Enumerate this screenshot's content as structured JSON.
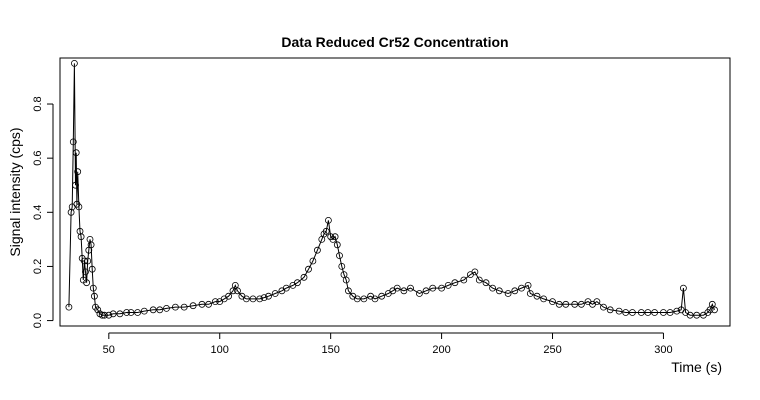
{
  "chart_data": {
    "type": "line",
    "title": "Data Reduced Cr52 Concentration",
    "xlabel": "Time (s)",
    "ylabel": "Signal intensity (cps)",
    "xlim": [
      28,
      330
    ],
    "ylim": [
      -0.02,
      0.97
    ],
    "x_ticks": [
      50,
      100,
      150,
      200,
      250,
      300
    ],
    "y_ticks": [
      0.0,
      0.2,
      0.4,
      0.6,
      0.8
    ],
    "x_tick_labels": [
      "50",
      "100",
      "150",
      "200",
      "250",
      "300"
    ],
    "y_tick_labels": [
      "0.0",
      "0.2",
      "0.4",
      "0.6",
      "0.8"
    ],
    "grid": false,
    "legend": "none",
    "markers": "open-circles-with-lines",
    "series": [
      {
        "x": [
          32,
          33,
          33.5,
          34,
          34.5,
          35,
          35.3,
          35.6,
          36,
          36.5,
          37,
          37.5,
          38,
          38.5,
          39,
          39.5,
          40,
          40.5,
          41,
          41.5,
          42,
          42.5,
          43,
          43.5,
          44,
          45,
          46,
          47,
          48,
          50,
          52,
          55,
          58,
          60,
          63,
          66,
          70,
          73,
          76,
          80,
          84,
          88,
          92,
          95,
          98,
          100,
          102,
          104,
          106,
          107,
          108,
          110,
          112,
          115,
          118,
          120,
          122,
          125,
          128,
          130,
          133,
          135,
          138,
          140,
          142,
          144,
          146,
          147,
          148,
          149,
          150,
          151,
          152,
          153,
          154,
          155,
          156,
          157,
          158,
          160,
          162,
          165,
          168,
          170,
          173,
          176,
          178,
          180,
          183,
          186,
          190,
          193,
          196,
          200,
          203,
          206,
          210,
          213,
          215,
          217,
          220,
          223,
          226,
          230,
          233,
          236,
          239,
          240,
          243,
          246,
          250,
          253,
          256,
          260,
          263,
          266,
          268,
          270,
          273,
          276,
          280,
          283,
          286,
          290,
          293,
          296,
          300,
          303,
          306,
          308,
          309,
          310,
          312,
          315,
          318,
          320,
          321,
          322,
          323
        ],
        "y": [
          0.05,
          0.4,
          0.42,
          0.66,
          0.95,
          0.5,
          0.62,
          0.43,
          0.55,
          0.42,
          0.33,
          0.31,
          0.23,
          0.15,
          0.22,
          0.18,
          0.14,
          0.22,
          0.26,
          0.3,
          0.28,
          0.19,
          0.12,
          0.09,
          0.05,
          0.04,
          0.025,
          0.02,
          0.02,
          0.02,
          0.025,
          0.025,
          0.03,
          0.03,
          0.03,
          0.035,
          0.04,
          0.04,
          0.045,
          0.05,
          0.05,
          0.055,
          0.06,
          0.06,
          0.07,
          0.07,
          0.08,
          0.09,
          0.11,
          0.13,
          0.11,
          0.09,
          0.08,
          0.08,
          0.08,
          0.085,
          0.09,
          0.1,
          0.11,
          0.12,
          0.13,
          0.14,
          0.16,
          0.19,
          0.22,
          0.26,
          0.3,
          0.32,
          0.33,
          0.37,
          0.31,
          0.3,
          0.31,
          0.28,
          0.24,
          0.2,
          0.17,
          0.15,
          0.11,
          0.09,
          0.08,
          0.08,
          0.09,
          0.08,
          0.09,
          0.1,
          0.11,
          0.12,
          0.11,
          0.12,
          0.1,
          0.11,
          0.12,
          0.12,
          0.13,
          0.14,
          0.15,
          0.17,
          0.18,
          0.15,
          0.14,
          0.12,
          0.11,
          0.1,
          0.11,
          0.12,
          0.13,
          0.1,
          0.09,
          0.08,
          0.07,
          0.06,
          0.06,
          0.06,
          0.06,
          0.07,
          0.06,
          0.07,
          0.05,
          0.04,
          0.035,
          0.03,
          0.03,
          0.03,
          0.03,
          0.03,
          0.03,
          0.03,
          0.035,
          0.04,
          0.12,
          0.03,
          0.02,
          0.02,
          0.02,
          0.03,
          0.04,
          0.06,
          0.04
        ]
      }
    ]
  }
}
